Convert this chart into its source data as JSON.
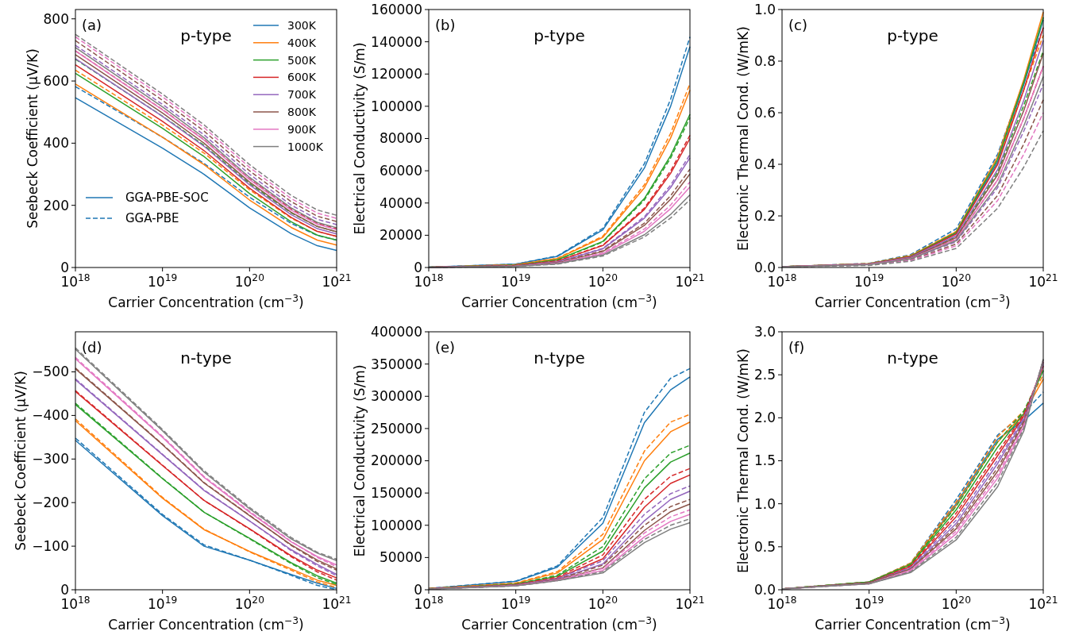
{
  "chart_data": [
    {
      "type": "line",
      "title": "p-type",
      "xlabel": "Carrier Concentration (cm$^{−3}$)",
      "ylabel": "Seebeck Coefficient (μV/K)",
      "log": "x",
      "legend": "top right",
      "annotations": [
        "(a)",
        "GGA-PBE-SOC",
        "GGA-PBE"
      ],
      "xlim": [
        1e+18,
        1e+21
      ],
      "xticks": [
        {
          "value": 1e+18,
          "label": "10$^{18}$"
        },
        {
          "value": 1e+19,
          "label": "10$^{19}$"
        },
        {
          "value": 1e+20,
          "label": "10$^{20}$"
        },
        {
          "value": 1e+21,
          "label": "10$^{21}$"
        }
      ],
      "ylim": [
        0,
        830
      ],
      "yticks": [
        0,
        200,
        400,
        600,
        800
      ],
      "x": [
        1e+18,
        1e+19,
        3e+19,
        1e+20,
        3e+20,
        6e+20,
        1e+21
      ],
      "series": [
        {
          "name": "300K",
          "color": "#1f77b4",
          "line_style": "solid",
          "values": [
            546,
            384,
            300,
            192,
            109,
            70,
            55
          ]
        },
        {
          "color": "#1f77b4",
          "line_style": "dashed",
          "values": [
            582,
            419,
            335,
            226,
            142,
            103,
            88
          ]
        },
        {
          "name": "400K",
          "color": "#ff7f0e",
          "line_style": "solid",
          "values": [
            590,
            419,
            331,
            217,
            129,
            88,
            72
          ]
        },
        {
          "color": "#ff7f0e",
          "line_style": "dashed",
          "values": [
            635,
            458,
            368,
            250,
            159,
            116,
            100
          ]
        },
        {
          "name": "500K",
          "color": "#2ca02c",
          "line_style": "solid",
          "values": [
            625,
            448,
            357,
            238,
            147,
            104,
            88
          ]
        },
        {
          "color": "#2ca02c",
          "line_style": "dashed",
          "values": [
            670,
            487,
            393,
            270,
            176,
            132,
            115
          ]
        },
        {
          "name": "600K",
          "color": "#d62728",
          "line_style": "solid",
          "values": [
            652,
            470,
            376,
            255,
            161,
            116,
            100
          ]
        },
        {
          "color": "#d62728",
          "line_style": "dashed",
          "values": [
            697,
            508,
            411,
            285,
            188,
            142,
            125
          ]
        },
        {
          "name": "700K",
          "color": "#9467bd",
          "line_style": "solid",
          "values": [
            672,
            486,
            390,
            266,
            170,
            125,
            108
          ]
        },
        {
          "color": "#9467bd",
          "line_style": "dashed",
          "values": [
            715,
            525,
            427,
            300,
            201,
            155,
            138
          ]
        },
        {
          "name": "800K",
          "color": "#8c564b",
          "line_style": "solid",
          "values": [
            685,
            497,
            400,
            275,
            178,
            132,
            115
          ]
        },
        {
          "color": "#8c564b",
          "line_style": "dashed",
          "values": [
            730,
            538,
            439,
            311,
            212,
            165,
            148
          ]
        },
        {
          "name": "900K",
          "color": "#e377c2",
          "line_style": "solid",
          "values": [
            697,
            507,
            410,
            283,
            185,
            139,
            122
          ]
        },
        {
          "color": "#e377c2",
          "line_style": "dashed",
          "values": [
            742,
            549,
            450,
            322,
            222,
            175,
            158
          ]
        },
        {
          "name": "1000K",
          "color": "#7f7f7f",
          "line_style": "solid",
          "values": [
            708,
            517,
            418,
            290,
            192,
            145,
            128
          ]
        },
        {
          "color": "#7f7f7f",
          "line_style": "dashed",
          "values": [
            750,
            558,
            459,
            331,
            232,
            185,
            168
          ]
        }
      ]
    },
    {
      "type": "line",
      "title": "p-type",
      "xlabel": "Carrier Concentration (cm$^{−3}$)",
      "ylabel": "Electrical Conductivity (S/m)",
      "log": "x",
      "annotations": [
        "(b)"
      ],
      "xlim": [
        1e+18,
        1e+21
      ],
      "xticks": [
        {
          "value": 1e+18,
          "label": "10$^{18}$"
        },
        {
          "value": 1e+19,
          "label": "10$^{19}$"
        },
        {
          "value": 1e+20,
          "label": "10$^{20}$"
        },
        {
          "value": 1e+21,
          "label": "10$^{21}$"
        }
      ],
      "ylim": [
        0,
        160000
      ],
      "yticks": [
        0,
        20000,
        40000,
        60000,
        80000,
        100000,
        120000,
        140000,
        160000
      ],
      "x": [
        1e+18,
        1e+19,
        3e+19,
        1e+20,
        3e+20,
        6e+20,
        1e+21
      ],
      "series": [
        {
          "color": "#1f77b4",
          "line_style": "solid",
          "values": [
            200,
            2100,
            6900,
            23300,
            61700,
            100000,
            137000
          ]
        },
        {
          "color": "#1f77b4",
          "line_style": "dashed",
          "values": [
            200,
            2100,
            7200,
            24300,
            64400,
            104400,
            143000
          ]
        },
        {
          "color": "#ff7f0e",
          "line_style": "solid",
          "values": [
            170,
            1700,
            5500,
            18700,
            49500,
            80300,
            110000
          ]
        },
        {
          "color": "#ff7f0e",
          "line_style": "dashed",
          "values": [
            170,
            1700,
            5700,
            19400,
            51300,
            83200,
            114000
          ]
        },
        {
          "color": "#2ca02c",
          "line_style": "solid",
          "values": [
            140,
            1400,
            4800,
            16200,
            42800,
            69400,
            95000
          ]
        },
        {
          "color": "#2ca02c",
          "line_style": "dashed",
          "values": [
            140,
            1400,
            4700,
            15800,
            41900,
            67900,
            93000
          ]
        },
        {
          "color": "#d62728",
          "line_style": "solid",
          "values": [
            120,
            1200,
            4000,
            13600,
            36000,
            58400,
            80000
          ]
        },
        {
          "color": "#d62728",
          "line_style": "dashed",
          "values": [
            120,
            1200,
            4100,
            13900,
            36900,
            59900,
            82000
          ]
        },
        {
          "color": "#9467bd",
          "line_style": "solid",
          "values": [
            100,
            1000,
            3400,
            11600,
            30600,
            49600,
            68000
          ]
        },
        {
          "color": "#9467bd",
          "line_style": "dashed",
          "values": [
            100,
            1100,
            3500,
            11900,
            31500,
            51100,
            70000
          ]
        },
        {
          "color": "#8c564b",
          "line_style": "solid",
          "values": [
            90,
            900,
            2900,
            9900,
            26100,
            42300,
            58000
          ]
        },
        {
          "color": "#8c564b",
          "line_style": "dashed",
          "values": [
            90,
            900,
            3100,
            10400,
            27500,
            44500,
            61000
          ]
        },
        {
          "color": "#e377c2",
          "line_style": "solid",
          "values": [
            80,
            800,
            2500,
            8500,
            22500,
            36500,
            50000
          ]
        },
        {
          "color": "#e377c2",
          "line_style": "dashed",
          "values": [
            80,
            800,
            2700,
            9000,
            23900,
            38700,
            53000
          ]
        },
        {
          "color": "#7f7f7f",
          "line_style": "solid",
          "values": [
            70,
            700,
            2300,
            7700,
            20300,
            32900,
            45000
          ]
        },
        {
          "color": "#7f7f7f",
          "line_style": "dashed",
          "values": [
            60,
            600,
            2100,
            7100,
            18900,
            30700,
            42000
          ]
        }
      ]
    },
    {
      "type": "line",
      "title": "p-type",
      "xlabel": "Carrier Concentration (cm$^{−3}$)",
      "ylabel": "Electronic Thermal Cond. (W/mK)",
      "log": "x",
      "annotations": [
        "(c)"
      ],
      "xlim": [
        1e+18,
        1e+21
      ],
      "xticks": [
        {
          "value": 1e+18,
          "label": "10$^{18}$"
        },
        {
          "value": 1e+19,
          "label": "10$^{19}$"
        },
        {
          "value": 1e+20,
          "label": "10$^{20}$"
        },
        {
          "value": 1e+21,
          "label": "10$^{21}$"
        }
      ],
      "ylim": [
        0,
        1
      ],
      "yticks": [
        {
          "value": 0,
          "label": "0.0"
        },
        0.2,
        0.4,
        0.6,
        0.8,
        {
          "value": 1,
          "label": "1.0"
        }
      ],
      "x": [
        1e+18,
        1e+19,
        3e+19,
        1e+20,
        3e+20,
        6e+20,
        1e+21
      ],
      "series": [
        {
          "color": "#1f77b4",
          "line_style": "solid",
          "values": [
            0.003,
            0.014,
            0.043,
            0.134,
            0.41,
            0.71,
            0.96
          ]
        },
        {
          "color": "#1f77b4",
          "line_style": "dashed",
          "values": [
            0.003,
            0.016,
            0.05,
            0.15,
            0.44,
            0.72,
            0.93
          ]
        },
        {
          "color": "#ff7f0e",
          "line_style": "solid",
          "values": [
            0.003,
            0.015,
            0.045,
            0.139,
            0.43,
            0.73,
            0.99
          ]
        },
        {
          "color": "#ff7f0e",
          "line_style": "dashed",
          "values": [
            0.003,
            0.015,
            0.047,
            0.14,
            0.42,
            0.69,
            0.9
          ]
        },
        {
          "color": "#2ca02c",
          "line_style": "solid",
          "values": [
            0.003,
            0.015,
            0.044,
            0.136,
            0.42,
            0.72,
            0.97
          ]
        },
        {
          "color": "#2ca02c",
          "line_style": "dashed",
          "values": [
            0.003,
            0.013,
            0.04,
            0.12,
            0.37,
            0.63,
            0.84
          ]
        },
        {
          "color": "#d62728",
          "line_style": "solid",
          "values": [
            0.003,
            0.014,
            0.042,
            0.13,
            0.4,
            0.69,
            0.93
          ]
        },
        {
          "color": "#d62728",
          "line_style": "dashed",
          "values": [
            0.002,
            0.012,
            0.035,
            0.11,
            0.34,
            0.58,
            0.78
          ]
        },
        {
          "color": "#9467bd",
          "line_style": "solid",
          "values": [
            0.003,
            0.013,
            0.04,
            0.123,
            0.38,
            0.65,
            0.88
          ]
        },
        {
          "color": "#9467bd",
          "line_style": "dashed",
          "values": [
            0.002,
            0.011,
            0.032,
            0.1,
            0.31,
            0.53,
            0.71
          ]
        },
        {
          "color": "#8c564b",
          "line_style": "solid",
          "values": [
            0.002,
            0.012,
            0.037,
            0.116,
            0.36,
            0.61,
            0.83
          ]
        },
        {
          "color": "#8c564b",
          "line_style": "dashed",
          "values": [
            0.002,
            0.01,
            0.029,
            0.091,
            0.28,
            0.48,
            0.65
          ]
        },
        {
          "color": "#e377c2",
          "line_style": "solid",
          "values": [
            0.002,
            0.012,
            0.035,
            0.109,
            0.34,
            0.58,
            0.78
          ]
        },
        {
          "color": "#e377c2",
          "line_style": "dashed",
          "values": [
            0.002,
            0.009,
            0.027,
            0.084,
            0.26,
            0.44,
            0.6
          ]
        },
        {
          "color": "#7f7f7f",
          "line_style": "solid",
          "values": [
            0.002,
            0.011,
            0.033,
            0.104,
            0.32,
            0.55,
            0.74
          ]
        },
        {
          "color": "#7f7f7f",
          "line_style": "dashed",
          "values": [
            0.002,
            0.008,
            0.024,
            0.074,
            0.23,
            0.39,
            0.53
          ]
        }
      ]
    },
    {
      "type": "line",
      "title": "n-type",
      "xlabel": "Carrier Concentration (cm$^{−3}$)",
      "ylabel": "Seebeck Coefficient (μV/K)",
      "log": "x",
      "annotations": [
        "(d)"
      ],
      "xlim": [
        1e+18,
        1e+21
      ],
      "xticks": [
        {
          "value": 1e+18,
          "label": "10$^{18}$"
        },
        {
          "value": 1e+19,
          "label": "10$^{19}$"
        },
        {
          "value": 1e+20,
          "label": "10$^{20}$"
        },
        {
          "value": 1e+21,
          "label": "10$^{21}$"
        }
      ],
      "ylim": [
        0,
        -592
      ],
      "yticks": [
        0,
        {
          "value": -100,
          "label": "−100"
        },
        {
          "value": -200,
          "label": "−200"
        },
        {
          "value": -300,
          "label": "−300"
        },
        {
          "value": -400,
          "label": "−400"
        },
        {
          "value": -500,
          "label": "−500"
        }
      ],
      "x": [
        1e+18,
        1e+19,
        3e+19,
        1e+20,
        3e+20,
        6e+20,
        1e+21
      ],
      "series": [
        {
          "color": "#1f77b4",
          "line_style": "solid",
          "values": [
            -343,
            -170,
            -100,
            -68,
            -35,
            -15,
            -3
          ]
        },
        {
          "color": "#1f77b4",
          "line_style": "dashed",
          "values": [
            -348,
            -173,
            -103,
            -68,
            -33,
            -10,
            0
          ]
        },
        {
          "color": "#ff7f0e",
          "line_style": "solid",
          "values": [
            -388,
            -210,
            -138,
            -88,
            -48,
            -22,
            -10
          ]
        },
        {
          "color": "#ff7f0e",
          "line_style": "dashed",
          "values": [
            -392,
            -212,
            -139,
            -87,
            -45,
            -18,
            -5
          ]
        },
        {
          "color": "#2ca02c",
          "line_style": "solid",
          "values": [
            -425,
            -255,
            -178,
            -118,
            -62,
            -32,
            -15
          ]
        },
        {
          "color": "#2ca02c",
          "line_style": "dashed",
          "values": [
            -428,
            -256,
            -178,
            -117,
            -60,
            -28,
            -12
          ]
        },
        {
          "color": "#d62728",
          "line_style": "solid",
          "values": [
            -455,
            -285,
            -205,
            -140,
            -78,
            -45,
            -27
          ]
        },
        {
          "color": "#d62728",
          "line_style": "dashed",
          "values": [
            -457,
            -286,
            -205,
            -139,
            -76,
            -41,
            -22
          ]
        },
        {
          "color": "#9467bd",
          "line_style": "solid",
          "values": [
            -482,
            -310,
            -228,
            -158,
            -92,
            -58,
            -35
          ]
        },
        {
          "color": "#9467bd",
          "line_style": "dashed",
          "values": [
            -484,
            -311,
            -229,
            -158,
            -90,
            -55,
            -32
          ]
        },
        {
          "color": "#8c564b",
          "line_style": "solid",
          "values": [
            -507,
            -333,
            -245,
            -170,
            -103,
            -68,
            -48
          ]
        },
        {
          "color": "#8c564b",
          "line_style": "dashed",
          "values": [
            -509,
            -334,
            -246,
            -171,
            -102,
            -65,
            -45
          ]
        },
        {
          "color": "#e377c2",
          "line_style": "solid",
          "values": [
            -530,
            -350,
            -258,
            -178,
            -110,
            -76,
            -57
          ]
        },
        {
          "color": "#e377c2",
          "line_style": "dashed",
          "values": [
            -533,
            -352,
            -260,
            -180,
            -111,
            -74,
            -53
          ]
        },
        {
          "color": "#7f7f7f",
          "line_style": "solid",
          "values": [
            -552,
            -365,
            -270,
            -186,
            -117,
            -84,
            -67
          ]
        },
        {
          "color": "#7f7f7f",
          "line_style": "dashed",
          "values": [
            -555,
            -368,
            -273,
            -189,
            -120,
            -86,
            -70
          ]
        }
      ]
    },
    {
      "type": "line",
      "title": "n-type",
      "xlabel": "Carrier Concentration (cm$^{−3}$)",
      "ylabel": "Electrical Conductivity (S/m)",
      "log": "x",
      "annotations": [
        "(e)"
      ],
      "xlim": [
        1e+18,
        1e+21
      ],
      "xticks": [
        {
          "value": 1e+18,
          "label": "10$^{18}$"
        },
        {
          "value": 1e+19,
          "label": "10$^{19}$"
        },
        {
          "value": 1e+20,
          "label": "10$^{20}$"
        },
        {
          "value": 1e+21,
          "label": "10$^{21}$"
        }
      ],
      "ylim": [
        0,
        400000
      ],
      "yticks": [
        0,
        50000,
        100000,
        150000,
        200000,
        250000,
        300000,
        350000,
        400000
      ],
      "x": [
        1e+18,
        1e+19,
        3e+19,
        1e+20,
        3e+20,
        6e+20,
        1e+21
      ],
      "series": [
        {
          "color": "#1f77b4",
          "line_style": "solid",
          "values": [
            2000,
            13000,
            35000,
            103000,
            259000,
            310000,
            330000
          ]
        },
        {
          "color": "#1f77b4",
          "line_style": "dashed",
          "values": [
            2000,
            13500,
            37000,
            112000,
            275000,
            328000,
            343000
          ]
        },
        {
          "color": "#ff7f0e",
          "line_style": "solid",
          "values": [
            1800,
            10000,
            26000,
            78000,
            200000,
            245000,
            260000
          ]
        },
        {
          "color": "#ff7f0e",
          "line_style": "dashed",
          "values": [
            1800,
            10500,
            28000,
            86000,
            215000,
            260000,
            272000
          ]
        },
        {
          "color": "#2ca02c",
          "line_style": "solid",
          "values": [
            1600,
            8500,
            21000,
            60000,
            158000,
            198000,
            212000
          ]
        },
        {
          "color": "#2ca02c",
          "line_style": "dashed",
          "values": [
            1600,
            9000,
            22500,
            67000,
            172000,
            212000,
            224000
          ]
        },
        {
          "color": "#d62728",
          "line_style": "solid",
          "values": [
            1500,
            7500,
            18000,
            48000,
            128000,
            165000,
            178000
          ]
        },
        {
          "color": "#d62728",
          "line_style": "dashed",
          "values": [
            1500,
            8000,
            19500,
            54000,
            140000,
            176000,
            188000
          ]
        },
        {
          "color": "#9467bd",
          "line_style": "solid",
          "values": [
            1300,
            7000,
            16500,
            40000,
            107000,
            140000,
            153000
          ]
        },
        {
          "color": "#9467bd",
          "line_style": "dashed",
          "values": [
            1300,
            7200,
            17500,
            45000,
            117000,
            149000,
            161000
          ]
        },
        {
          "color": "#8c564b",
          "line_style": "solid",
          "values": [
            1200,
            6500,
            15000,
            34000,
            92000,
            121000,
            133000
          ]
        },
        {
          "color": "#8c564b",
          "line_style": "dashed",
          "values": [
            1200,
            6800,
            16000,
            38000,
            100000,
            129000,
            140000
          ]
        },
        {
          "color": "#e377c2",
          "line_style": "solid",
          "values": [
            1100,
            6200,
            14500,
            30000,
            82000,
            106000,
            117000
          ]
        },
        {
          "color": "#e377c2",
          "line_style": "dashed",
          "values": [
            1100,
            6400,
            15000,
            33000,
            88000,
            113000,
            124000
          ]
        },
        {
          "color": "#7f7f7f",
          "line_style": "solid",
          "values": [
            1000,
            6000,
            14000,
            26000,
            73000,
            94000,
            104000
          ]
        },
        {
          "color": "#7f7f7f",
          "line_style": "dashed",
          "values": [
            1000,
            6000,
            14000,
            28000,
            78000,
            100000,
            110000
          ]
        }
      ]
    },
    {
      "type": "line",
      "title": "n-type",
      "xlabel": "Carrier Concentration (cm$^{−3}$)",
      "ylabel": "Electronic Thermal Cond. (W/mK)",
      "log": "x",
      "annotations": [
        "(f)"
      ],
      "xlim": [
        1e+18,
        1e+21
      ],
      "xticks": [
        {
          "value": 1e+18,
          "label": "10$^{18}$"
        },
        {
          "value": 1e+19,
          "label": "10$^{19}$"
        },
        {
          "value": 1e+20,
          "label": "10$^{20}$"
        },
        {
          "value": 1e+21,
          "label": "10$^{21}$"
        }
      ],
      "ylim": [
        0,
        3
      ],
      "yticks": [
        {
          "value": 0,
          "label": "0.0"
        },
        0.5,
        {
          "value": 1,
          "label": "1.0"
        },
        1.5,
        {
          "value": 2,
          "label": "2.0"
        },
        2.5,
        {
          "value": 3,
          "label": "3.0"
        }
      ],
      "x": [
        1e+18,
        1e+19,
        3e+19,
        1e+20,
        3e+20,
        6e+20,
        1e+21
      ],
      "series": [
        {
          "color": "#1f77b4",
          "line_style": "solid",
          "values": [
            0.01,
            0.09,
            0.3,
            1.0,
            1.75,
            1.97,
            2.17
          ]
        },
        {
          "color": "#1f77b4",
          "line_style": "dashed",
          "values": [
            0.01,
            0.09,
            0.31,
            1.05,
            1.8,
            2.05,
            2.3
          ]
        },
        {
          "color": "#ff7f0e",
          "line_style": "solid",
          "values": [
            0.01,
            0.09,
            0.3,
            0.98,
            1.72,
            2.05,
            2.45
          ]
        },
        {
          "color": "#ff7f0e",
          "line_style": "dashed",
          "values": [
            0.01,
            0.09,
            0.31,
            1.02,
            1.78,
            2.08,
            2.5
          ]
        },
        {
          "color": "#2ca02c",
          "line_style": "solid",
          "values": [
            0.01,
            0.09,
            0.29,
            0.93,
            1.66,
            2.05,
            2.55
          ]
        },
        {
          "color": "#2ca02c",
          "line_style": "dashed",
          "values": [
            0.01,
            0.09,
            0.3,
            0.97,
            1.72,
            2.08,
            2.55
          ]
        },
        {
          "color": "#d62728",
          "line_style": "solid",
          "values": [
            0.01,
            0.08,
            0.27,
            0.85,
            1.56,
            2.02,
            2.6
          ]
        },
        {
          "color": "#d62728",
          "line_style": "dashed",
          "values": [
            0.01,
            0.08,
            0.28,
            0.89,
            1.6,
            2.04,
            2.6
          ]
        },
        {
          "color": "#9467bd",
          "line_style": "solid",
          "values": [
            0.01,
            0.08,
            0.25,
            0.77,
            1.47,
            1.98,
            2.63
          ]
        },
        {
          "color": "#9467bd",
          "line_style": "dashed",
          "values": [
            0.01,
            0.08,
            0.26,
            0.81,
            1.51,
            2.0,
            2.62
          ]
        },
        {
          "color": "#8c564b",
          "line_style": "solid",
          "values": [
            0.01,
            0.08,
            0.24,
            0.71,
            1.38,
            1.94,
            2.65
          ]
        },
        {
          "color": "#8c564b",
          "line_style": "dashed",
          "values": [
            0.01,
            0.08,
            0.24,
            0.74,
            1.42,
            1.96,
            2.65
          ]
        },
        {
          "color": "#e377c2",
          "line_style": "solid",
          "values": [
            0.01,
            0.07,
            0.22,
            0.65,
            1.3,
            1.9,
            2.67
          ]
        },
        {
          "color": "#e377c2",
          "line_style": "dashed",
          "values": [
            0.01,
            0.07,
            0.23,
            0.68,
            1.34,
            1.92,
            2.66
          ]
        },
        {
          "color": "#7f7f7f",
          "line_style": "solid",
          "values": [
            0.01,
            0.07,
            0.2,
            0.58,
            1.2,
            1.85,
            2.68
          ]
        },
        {
          "color": "#7f7f7f",
          "line_style": "dashed",
          "values": [
            0.01,
            0.07,
            0.21,
            0.61,
            1.25,
            1.88,
            2.68
          ]
        }
      ]
    }
  ]
}
